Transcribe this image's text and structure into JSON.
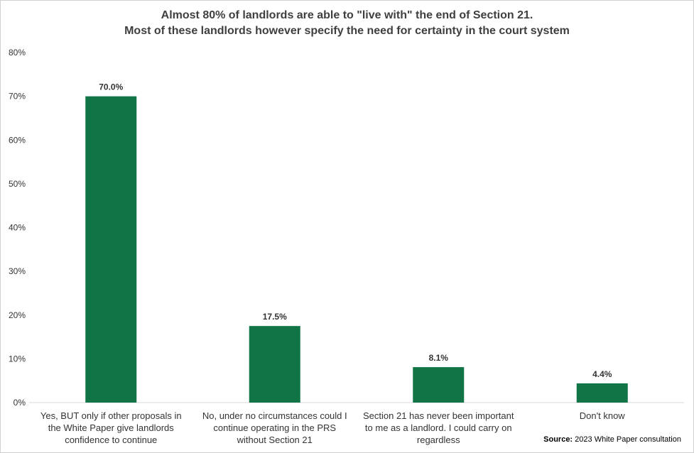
{
  "chart_data": {
    "type": "bar",
    "title_line1": "Almost 80% of landlords are able to \"live with\" the end of Section 21.",
    "title_line2": "Most of these landlords however specify the need for certainty in the court system",
    "categories": [
      [
        "Yes, BUT only if other proposals in",
        "the White Paper give landlords",
        "confidence to continue"
      ],
      [
        "No, under no circumstances could I",
        "continue operating in the PRS",
        "without Section 21"
      ],
      [
        "Section 21 has never been important",
        "to me as a landlord. I could carry on",
        "regardless"
      ],
      [
        "Don't know"
      ]
    ],
    "values": [
      70.0,
      17.5,
      8.1,
      4.4
    ],
    "data_labels": [
      "70.0%",
      "17.5%",
      "8.1%",
      "4.4%"
    ],
    "ylim": [
      0,
      80
    ],
    "yticks": [
      "0%",
      "10%",
      "20%",
      "30%",
      "40%",
      "50%",
      "60%",
      "70%",
      "80%"
    ],
    "grid": false,
    "bar_color": "#117446"
  },
  "source": {
    "label": "Source:",
    "text": "2023 White Paper consultation"
  }
}
